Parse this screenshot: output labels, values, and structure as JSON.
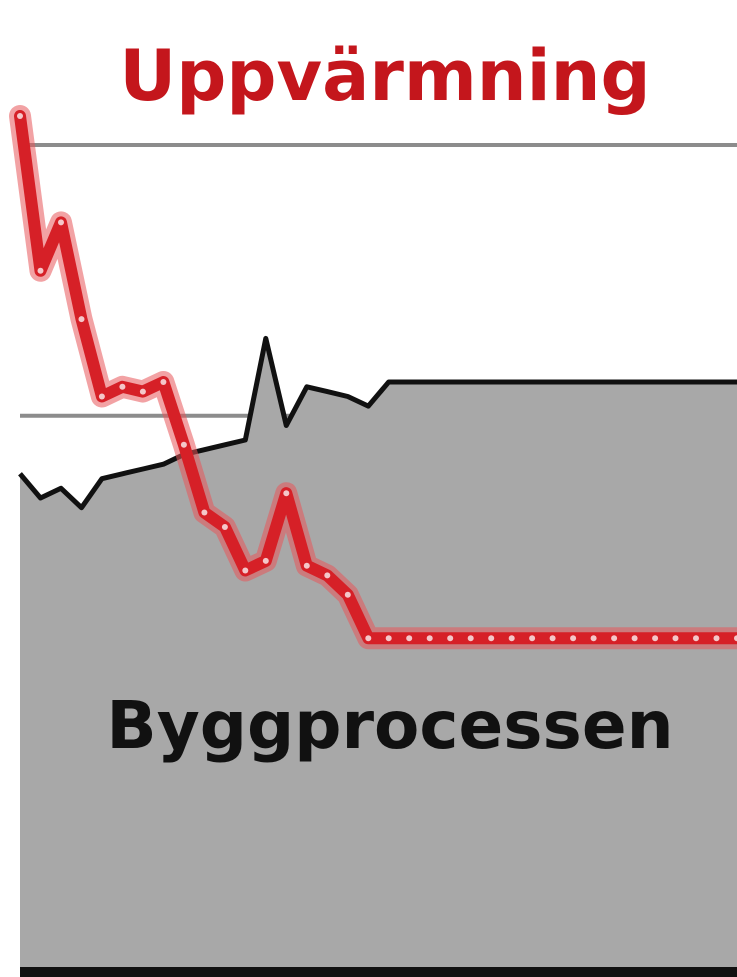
{
  "chart_data": {
    "type": "area",
    "title": "",
    "xlabel": "",
    "ylabel": "",
    "grid": "horizontal",
    "legend": "none",
    "x": [
      0,
      1,
      2,
      3,
      4,
      5,
      6,
      7,
      8,
      9,
      10,
      11,
      12,
      13,
      14,
      15,
      16,
      17,
      18,
      19,
      20,
      21,
      22,
      23,
      24,
      25,
      26,
      27,
      28,
      29,
      30,
      31,
      32,
      33,
      34,
      35
    ],
    "xlim": [
      0,
      35
    ],
    "ylim": [
      0,
      100
    ],
    "gridlines": [
      85,
      57
    ],
    "series": [
      {
        "name": "Byggprocessen",
        "kind": "area",
        "color": "#a8a8a8",
        "line_color": "#111111",
        "values": [
          51,
          48.5,
          49.5,
          47.5,
          50.5,
          51,
          51.5,
          52,
          53,
          53.5,
          54,
          54.5,
          65,
          56,
          60,
          59.5,
          59,
          58,
          60.5,
          60.5,
          60.5,
          60.5,
          60.5,
          60.5,
          60.5,
          60.5,
          60.5,
          60.5,
          60.5,
          60.5,
          60.5,
          60.5,
          60.5,
          60.5,
          60.5,
          60.5
        ]
      },
      {
        "name": "Uppvärmning",
        "kind": "line",
        "color": "#d62027",
        "values": [
          88,
          72,
          77,
          67,
          59,
          60,
          59.5,
          60.5,
          54,
          47,
          45.5,
          41,
          42,
          49,
          41.5,
          40.5,
          38.5,
          34,
          34,
          34,
          34,
          34,
          34,
          34,
          34,
          34,
          34,
          34,
          34,
          34,
          34,
          34,
          34,
          34,
          34,
          34
        ]
      }
    ],
    "annotations": [
      {
        "id": "heating",
        "text": "Uppvärmning",
        "color": "#c4161c"
      },
      {
        "id": "building",
        "text": "Byggprocessen",
        "color": "#111111"
      }
    ]
  }
}
